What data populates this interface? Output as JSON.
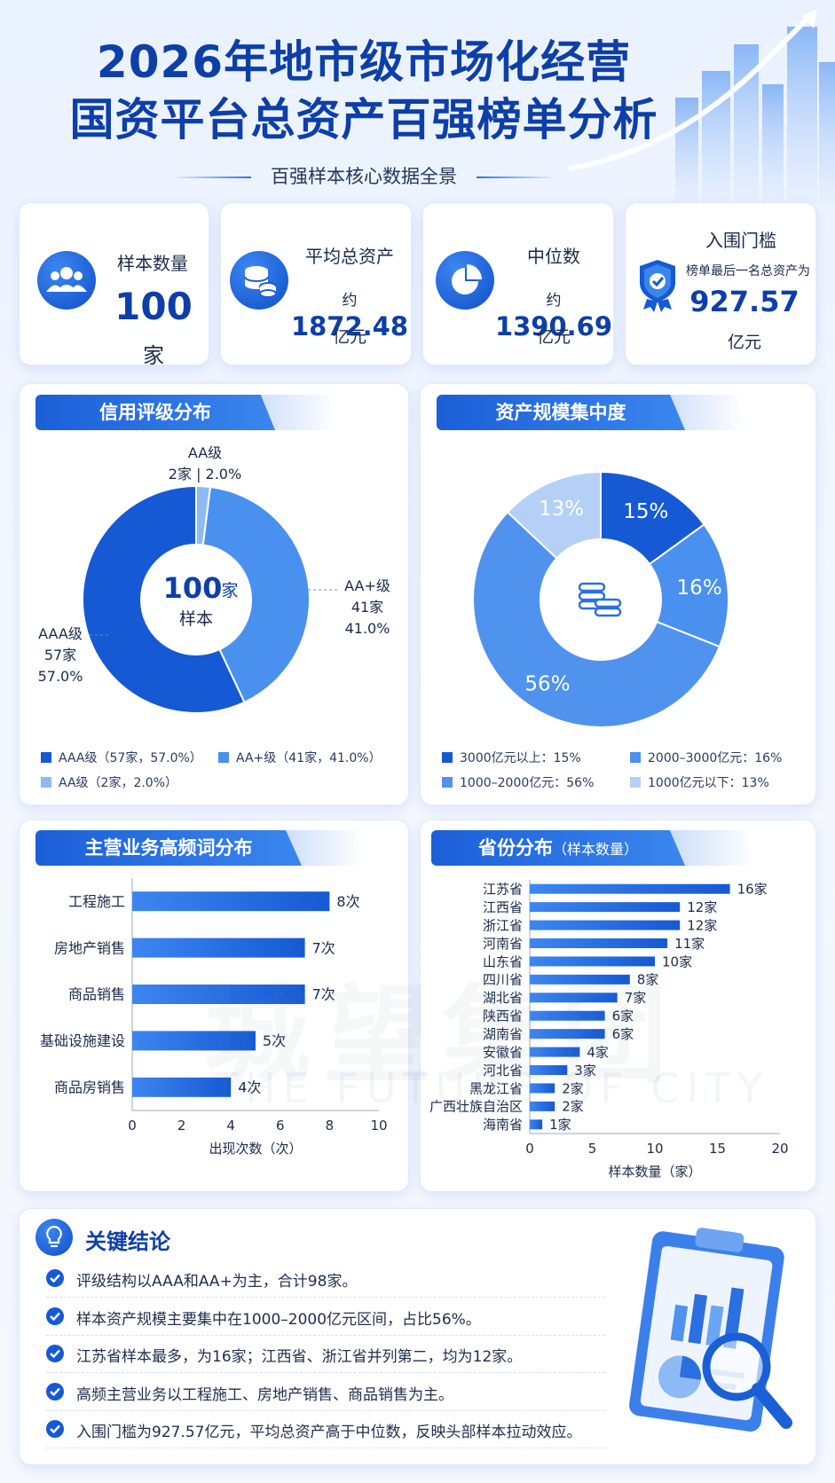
{
  "header": {
    "title_line1": "2026年地市级市场化经营",
    "title_line2": "国资平台总资产百强榜单分析",
    "subtitle": "百强样本核心数据全景"
  },
  "stats": [
    {
      "label": "样本数量",
      "value": "100",
      "unit": "家",
      "icon": "users-icon"
    },
    {
      "label": "平均总资产",
      "prefix": "约",
      "value": "1872.48",
      "unit": "亿元",
      "icon": "coins-icon"
    },
    {
      "label": "中位数",
      "prefix": "约",
      "value": "1390.69",
      "unit": "亿元",
      "icon": "pie-icon"
    },
    {
      "label": "入围门槛",
      "note": "榜单最后一名总资产为",
      "value": "927.57",
      "unit": "亿元",
      "icon": "shield-check-icon"
    }
  ],
  "sections": {
    "credit": "信用评级分布",
    "scale": "资产规模集中度",
    "business": "主营业务高频词分布",
    "province": "省份分布",
    "province_sub": "（样本数量）"
  },
  "colors": {
    "primary": "#1559d4",
    "mid": "#4a90ee",
    "light": "#8dbaf5",
    "lighter": "#b4d0f7",
    "title": "#0d3fa8"
  },
  "chart_data": [
    {
      "type": "pie",
      "name": "信用评级分布",
      "center_value": "100",
      "center_unit": "家",
      "center_label": "样本",
      "slices": [
        {
          "label": "AAA级",
          "count": "57家",
          "pct": "57.0%",
          "value": 57
        },
        {
          "label": "AA+级",
          "count": "41家",
          "pct": "41.0%",
          "value": 41
        },
        {
          "label": "AA级",
          "count": "2家",
          "pct": "2.0%",
          "value": 2
        }
      ],
      "legend": [
        "AAA级（57家，57.0%）",
        "AA+级（41家，41.0%）",
        "AA级（2家，2.0%）"
      ]
    },
    {
      "type": "pie",
      "name": "资产规模集中度",
      "slices": [
        {
          "label": "15%",
          "value": 15
        },
        {
          "label": "16%",
          "value": 16
        },
        {
          "label": "56%",
          "value": 56
        },
        {
          "label": "13%",
          "value": 13
        }
      ],
      "legend": [
        "3000亿元以上：15%",
        "2000–3000亿元：16%",
        "1000–2000亿元：56%",
        "1000亿元以下：13%"
      ]
    },
    {
      "type": "bar",
      "orientation": "horizontal",
      "name": "主营业务高频词分布",
      "categories": [
        "工程施工",
        "房地产销售",
        "商品销售",
        "基础设施建设",
        "商品房销售"
      ],
      "values": [
        8,
        7,
        7,
        5,
        4
      ],
      "value_labels": [
        "8次",
        "7次",
        "7次",
        "5次",
        "4次"
      ],
      "xlabel": "出现次数（次）",
      "xlim": [
        0,
        10
      ],
      "xticks": [
        "0",
        "2",
        "4",
        "6",
        "8",
        "10"
      ]
    },
    {
      "type": "bar",
      "orientation": "horizontal",
      "name": "省份分布",
      "categories": [
        "江苏省",
        "江西省",
        "浙江省",
        "河南省",
        "山东省",
        "四川省",
        "湖北省",
        "陕西省",
        "湖南省",
        "安徽省",
        "河北省",
        "黑龙江省",
        "广西壮族自治区",
        "海南省"
      ],
      "values": [
        16,
        12,
        12,
        11,
        10,
        8,
        7,
        6,
        6,
        4,
        3,
        2,
        2,
        1
      ],
      "value_labels": [
        "16家",
        "12家",
        "12家",
        "11家",
        "10家",
        "8家",
        "7家",
        "6家",
        "6家",
        "4家",
        "3家",
        "2家",
        "2家",
        "1家"
      ],
      "xlabel": "样本数量（家）",
      "xlim": [
        0,
        20
      ],
      "xticks": [
        "0",
        "5",
        "10",
        "15",
        "20"
      ]
    }
  ],
  "conclusions": {
    "title": "关键结论",
    "items": [
      "评级结构以AAA和AA+为主，合计98家。",
      "样本资产规模主要集中在1000–2000亿元区间，占比56%。",
      "江苏省样本最多，为16家；江西省、浙江省并列第二，均为12家。",
      "高频主营业务以工程施工、房地产销售、商品销售为主。",
      "入围门槛为927.57亿元，平均总资产高于中位数，反映头部样本拉动效应。"
    ]
  },
  "watermark": {
    "main": "城望集团",
    "sub": "THE FUTURE OF CITY"
  }
}
